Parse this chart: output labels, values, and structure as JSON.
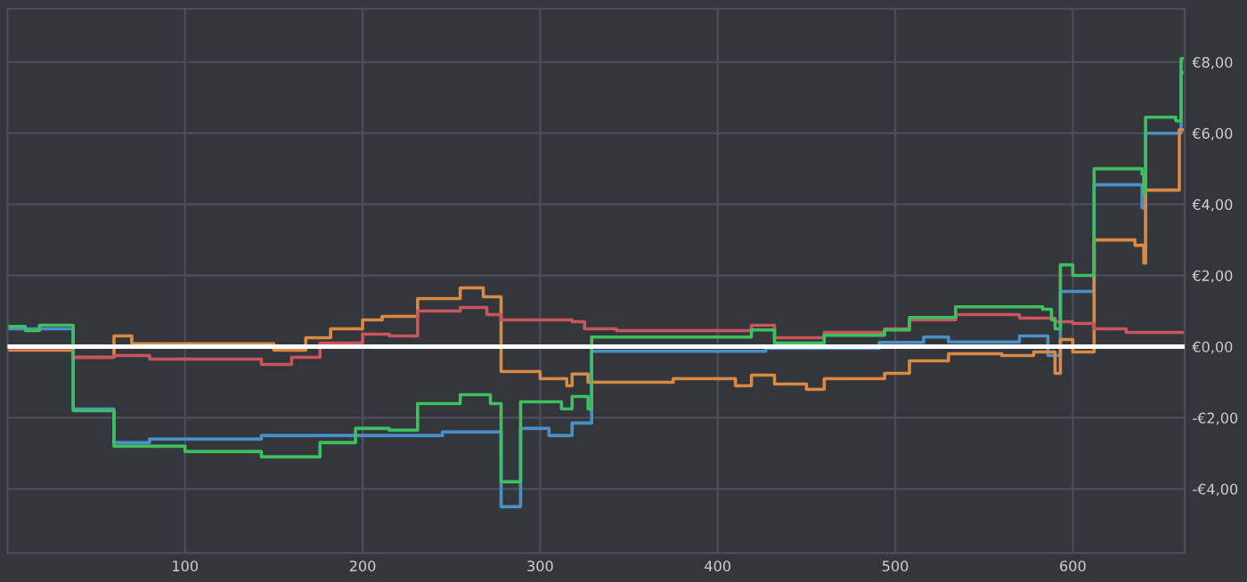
{
  "chart_data": {
    "type": "step",
    "xlim": [
      0,
      663
    ],
    "ylim": [
      -5.8,
      9.5
    ],
    "xticks": [
      100,
      200,
      300,
      400,
      500,
      600
    ],
    "yticks": [
      {
        "value": -4,
        "label": "-€4,00"
      },
      {
        "value": -2,
        "label": "-€2,00"
      },
      {
        "value": 0,
        "label": "€0,00"
      },
      {
        "value": 2,
        "label": "€2,00"
      },
      {
        "value": 4,
        "label": "€4,00"
      },
      {
        "value": 6,
        "label": "€6,00"
      },
      {
        "value": 8,
        "label": "€8,00"
      }
    ],
    "grid": true,
    "line_style": "solid",
    "ref_lines": [
      {
        "axis": "y",
        "value": 0,
        "color": "#ffffff"
      }
    ],
    "series": [
      {
        "color": "#4a90c8",
        "x": [
          0,
          18,
          37,
          60,
          80,
          143,
          245,
          278,
          289,
          305,
          318,
          329,
          427,
          491,
          516,
          530,
          570,
          586,
          593,
          612,
          639,
          641,
          661,
          663
        ],
        "values": [
          0.5,
          0.5,
          -1.75,
          -2.7,
          -2.6,
          -2.5,
          -2.4,
          -4.5,
          -2.3,
          -2.5,
          -2.15,
          -0.13,
          -0.05,
          0.12,
          0.27,
          0.13,
          0.3,
          -0.25,
          1.55,
          4.55,
          3.9,
          6.0,
          7.7,
          7.7
        ]
      },
      {
        "color": "#d98a45",
        "x": [
          0,
          37,
          60,
          70,
          150,
          168,
          182,
          200,
          211,
          231,
          255,
          268,
          278,
          300,
          315,
          318,
          327,
          375,
          410,
          419,
          432,
          450,
          460,
          494,
          508,
          530,
          560,
          578,
          590,
          593,
          600,
          612,
          635,
          640,
          641,
          660,
          663
        ],
        "values": [
          -0.1,
          -0.3,
          0.3,
          0.08,
          -0.1,
          0.25,
          0.5,
          0.75,
          0.85,
          1.35,
          1.65,
          1.4,
          -0.7,
          -0.9,
          -1.1,
          -0.77,
          -1.0,
          -0.9,
          -1.1,
          -0.8,
          -1.05,
          -1.2,
          -0.9,
          -0.75,
          -0.4,
          -0.2,
          -0.25,
          -0.15,
          -0.75,
          0.2,
          -0.15,
          3.0,
          2.85,
          2.35,
          4.4,
          6.1,
          6.1
        ]
      },
      {
        "color": "#c9565c",
        "x": [
          0,
          37,
          60,
          80,
          143,
          160,
          176,
          200,
          215,
          231,
          255,
          270,
          278,
          318,
          325,
          343,
          419,
          432,
          460,
          494,
          508,
          534,
          570,
          590,
          600,
          612,
          630,
          663
        ],
        "values": [
          -0.05,
          -0.3,
          -0.25,
          -0.35,
          -0.5,
          -0.3,
          0.1,
          0.35,
          0.3,
          1.0,
          1.1,
          0.9,
          0.75,
          0.7,
          0.5,
          0.45,
          0.6,
          0.25,
          0.4,
          0.5,
          0.75,
          0.9,
          0.8,
          0.7,
          0.65,
          0.5,
          0.4,
          0.4
        ]
      },
      {
        "color": "#3fbf5f",
        "x": [
          0,
          10,
          18,
          37,
          60,
          100,
          143,
          176,
          196,
          215,
          231,
          255,
          272,
          278,
          289,
          312,
          318,
          327,
          329,
          419,
          432,
          460,
          494,
          508,
          534,
          583,
          588,
          590,
          593,
          600,
          612,
          639,
          640,
          641,
          658,
          661,
          663
        ],
        "values": [
          0.57,
          0.45,
          0.6,
          -1.8,
          -2.8,
          -2.95,
          -3.1,
          -2.7,
          -2.3,
          -2.35,
          -1.6,
          -1.35,
          -1.6,
          -3.8,
          -1.55,
          -1.75,
          -1.4,
          -1.75,
          0.27,
          0.47,
          0.1,
          0.32,
          0.47,
          0.82,
          1.12,
          1.05,
          0.75,
          0.5,
          2.3,
          2.0,
          5.0,
          4.85,
          4.3,
          6.45,
          6.35,
          8.1,
          8.1
        ]
      }
    ]
  }
}
